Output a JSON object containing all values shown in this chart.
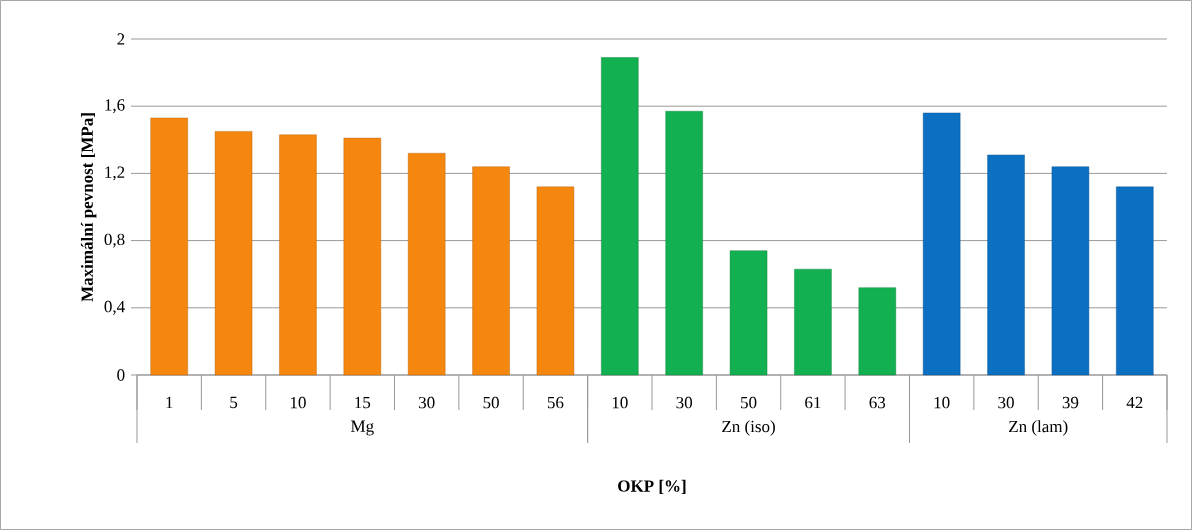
{
  "chart_data": {
    "type": "bar",
    "xlabel": "OKP [%]",
    "ylabel": "Maximální pevnost [MPa]",
    "categories": [
      "1",
      "5",
      "10",
      "15",
      "30",
      "50",
      "56",
      "10",
      "30",
      "50",
      "61",
      "63",
      "10",
      "30",
      "39",
      "42"
    ],
    "stacked": true,
    "series": [
      {
        "name": "Mg",
        "color": "#f5870f",
        "values": [
          1.53,
          1.45,
          1.43,
          1.41,
          1.32,
          1.24,
          1.12,
          null,
          null,
          null,
          null,
          null,
          null,
          null,
          null,
          null
        ]
      },
      {
        "name": "Zn (iso)",
        "color": "#12b050",
        "values": [
          null,
          null,
          null,
          null,
          null,
          null,
          null,
          1.89,
          1.57,
          0.74,
          0.63,
          0.52,
          null,
          null,
          null,
          null
        ]
      },
      {
        "name": "Zn (lam)",
        "color": "#0b6fc2",
        "values": [
          null,
          null,
          null,
          null,
          null,
          null,
          null,
          null,
          null,
          null,
          null,
          null,
          1.56,
          1.31,
          1.24,
          1.12
        ]
      }
    ],
    "ylim": [
      0,
      2
    ],
    "yticks": [
      0,
      {
        "value": 0.4,
        "label": "0,4"
      },
      {
        "value": 0.8,
        "label": "0,8"
      },
      {
        "value": 1.2,
        "label": "1,2"
      },
      {
        "value": 1.6,
        "label": "1,6"
      },
      2
    ],
    "grid": "y",
    "legend": false
  }
}
